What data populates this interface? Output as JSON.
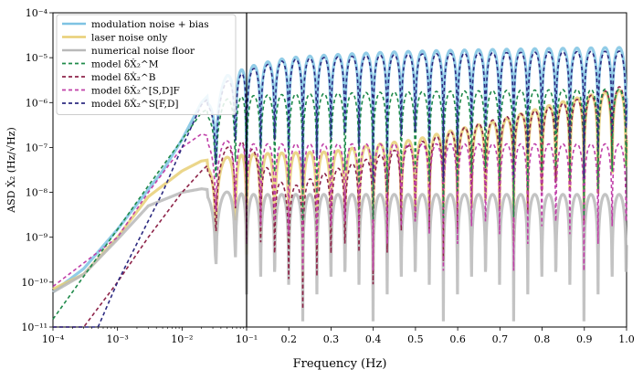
{
  "chart_data": {
    "type": "line",
    "xlabel": "Frequency (Hz)",
    "ylabel": "ASD Ẋ₂ (Hz/√Hz)",
    "x_scale": "log-then-linear",
    "x_log_range": [
      0.0001,
      0.1
    ],
    "x_linear_range": [
      0.1,
      1.0
    ],
    "xlim": [
      0.0001,
      1.0
    ],
    "ylim": [
      1e-11,
      0.0001
    ],
    "y_scale": "log",
    "grid": false,
    "vertical_line_at": 0.1,
    "legend_position": "upper-left",
    "x_tick_labels": [
      "10⁻⁴",
      "10⁻³",
      "10⁻²",
      "10⁻¹",
      "0.2",
      "0.3",
      "0.4",
      "0.5",
      "0.6",
      "0.7",
      "0.8",
      "0.9",
      "1.0"
    ],
    "x_tick_values": [
      0.0001,
      0.001,
      0.01,
      0.1,
      0.2,
      0.3,
      0.4,
      0.5,
      0.6,
      0.7,
      0.8,
      0.9,
      1.0
    ],
    "y_tick_labels": [
      "10⁻¹¹",
      "10⁻¹⁰",
      "10⁻⁹",
      "10⁻⁸",
      "10⁻⁷",
      "10⁻⁶",
      "10⁻⁵",
      "10⁻⁴"
    ],
    "y_tick_values": [
      1e-11,
      1e-10,
      1e-09,
      1e-08,
      1e-07,
      1e-06,
      1e-05,
      0.0001
    ],
    "null_period_hz": 0.0333,
    "series": [
      {
        "name": "modulation noise + bias",
        "color": "#7ec3e3",
        "style": "solid-thick",
        "envelope": {
          "x": [
            0.0001,
            0.0003,
            0.001,
            0.005,
            0.01,
            0.02,
            0.05,
            0.1,
            0.2,
            0.5,
            1.0
          ],
          "y": [
            6e-11,
            2e-10,
            1.5e-09,
            3e-08,
            1.5e-07,
            1e-06,
            4e-06,
            6e-06,
            1e-05,
            1.4e-05,
            1.7e-05
          ]
        }
      },
      {
        "name": "laser noise only",
        "color": "#e8cf75",
        "style": "solid-thick",
        "envelope": {
          "x": [
            0.0001,
            0.0003,
            0.001,
            0.003,
            0.01,
            0.02,
            0.1,
            0.3,
            0.5,
            0.7,
            0.9,
            1.0
          ],
          "y": [
            7e-11,
            1.5e-10,
            1e-09,
            8e-09,
            3e-08,
            5e-08,
            7e-08,
            8e-08,
            1.5e-07,
            4e-07,
            1.4e-06,
            2e-06
          ]
        }
      },
      {
        "name": "numerical noise floor",
        "color": "#b9b9b9",
        "style": "solid-thick",
        "envelope": {
          "x": [
            0.0001,
            0.0003,
            0.001,
            0.003,
            0.01,
            0.02,
            0.1,
            0.5,
            1.0
          ],
          "y": [
            6e-11,
            1.5e-10,
            9e-10,
            5e-09,
            1e-08,
            1.2e-08,
            9e-09,
            9e-09,
            9e-09
          ]
        }
      },
      {
        "name": "model δẊ₂^M",
        "color": "#1f8a4a",
        "style": "dashed",
        "envelope": {
          "x": [
            0.0001,
            0.001,
            0.003,
            0.01,
            0.02,
            0.05,
            0.1,
            0.3,
            0.6,
            1.0
          ],
          "y": [
            1.5e-11,
            1.5e-09,
            1.4e-08,
            1.5e-07,
            6e-07,
            1.2e-06,
            1.4e-06,
            1.6e-06,
            1.8e-06,
            2e-06
          ]
        }
      },
      {
        "name": "model δẊ₂^B",
        "color": "#8e2449",
        "style": "dashed",
        "envelope": {
          "x": [
            0.0003,
            0.001,
            0.003,
            0.01,
            0.02,
            0.05,
            0.1,
            0.2,
            0.3,
            0.4,
            0.5,
            0.6,
            0.7,
            0.8,
            0.9,
            1.0
          ],
          "y": [
            1e-11,
            1e-10,
            1e-09,
            1e-08,
            3e-08,
            1e-07,
            1.5e-07,
            1.2e-08,
            3e-08,
            6e-08,
            1.2e-07,
            2.5e-07,
            4.5e-07,
            7e-07,
            1.3e-06,
            2.5e-06
          ]
        }
      },
      {
        "name": "model δẊ₂^[S,D]F",
        "color": "#c040a8",
        "style": "dashed",
        "envelope": {
          "x": [
            0.0001,
            0.001,
            0.003,
            0.01,
            0.02,
            0.05,
            0.1,
            0.5,
            1.0
          ],
          "y": [
            8e-11,
            1e-09,
            1e-08,
            1e-07,
            2e-07,
            1.4e-07,
            1.2e-07,
            1.2e-07,
            1.2e-07
          ]
        }
      },
      {
        "name": "model δẊ₂^S[F,D]",
        "color": "#2c2a80",
        "style": "dashed",
        "envelope": {
          "x": [
            0.0001,
            0.0005,
            0.001,
            0.005,
            0.01,
            0.02,
            0.05,
            0.1,
            0.2,
            0.5,
            1.0
          ],
          "y": [
            1e-12,
            1e-11,
            1e-10,
            1e-08,
            1e-07,
            9e-07,
            3e-06,
            5e-06,
            9e-06,
            1.2e-05,
            1.4e-05
          ]
        }
      }
    ]
  }
}
